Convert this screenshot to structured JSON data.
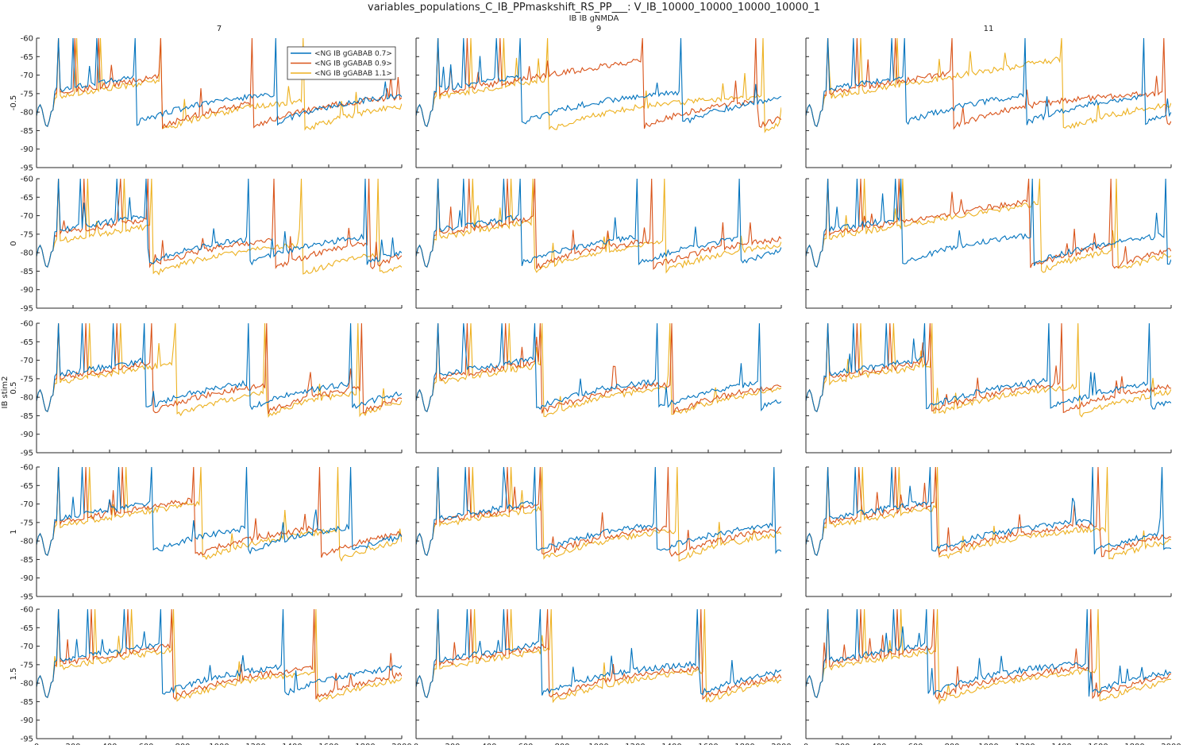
{
  "figure": {
    "title": "variables_populations_C_IB_PPmaskshift_RS_PP___: V_IB_10000_10000_10000_10000_1",
    "column_param_label": "IB IB gNMDA",
    "row_param_label": "IB stim2"
  },
  "chart_data": {
    "type": "line",
    "layout": {
      "rows": 5,
      "cols": 3
    },
    "column_labels": [
      "7",
      "9",
      "11"
    ],
    "row_labels": [
      "-0.5",
      "0",
      "0.5",
      "1",
      "1.5"
    ],
    "xlim": [
      0,
      2000
    ],
    "ylim": [
      -95,
      -60
    ],
    "x_ticks": [
      0,
      200,
      400,
      600,
      800,
      1000,
      1200,
      1400,
      1600,
      1800,
      2000
    ],
    "y_ticks": [
      -60,
      -65,
      -70,
      -75,
      -80,
      -85,
      -90,
      -95
    ],
    "grid": false,
    "legend": {
      "placement": "inside-top of first panel",
      "entries": [
        "<NG IB gGABAB 0.7>",
        "<NG IB gGABAB 0.9>",
        "<NG IB gGABAB 1.1>"
      ]
    },
    "series_colors": [
      "#0072BD",
      "#D95319",
      "#EDB120"
    ],
    "note_x_step": 10,
    "panels": [
      {
        "row": 0,
        "col": 0,
        "spikes": [
          [
            120,
            200,
            330
          ],
          [
            120,
            210,
            340
          ],
          [
            120,
            220,
            350
          ]
        ],
        "resets": [
          [
            540,
            1310
          ],
          [
            680,
            1180
          ],
          [
            680,
            1460
          ]
        ],
        "offset": [
          0,
          -1,
          -2
        ]
      },
      {
        "row": 0,
        "col": 1,
        "spikes": [
          [
            120,
            260,
            440
          ],
          [
            120,
            280,
            460
          ],
          [
            120,
            300,
            480
          ]
        ],
        "resets": [
          [
            570,
            1450
          ],
          [
            1240,
            1860
          ],
          [
            720,
            1900
          ]
        ],
        "offset": [
          0,
          -1,
          -2
        ]
      },
      {
        "row": 0,
        "col": 2,
        "spikes": [
          [
            120,
            260,
            470
          ],
          [
            120,
            280,
            490
          ],
          [
            120,
            300,
            500
          ]
        ],
        "resets": [
          [
            540,
            1200,
            1850
          ],
          [
            800,
            1960
          ],
          [
            1400
          ]
        ],
        "offset": [
          0,
          -1,
          -2
        ]
      },
      {
        "row": 1,
        "col": 0,
        "spikes": [
          [
            120,
            240,
            440
          ],
          [
            120,
            260,
            460
          ],
          [
            120,
            280,
            480
          ]
        ],
        "resets": [
          [
            600,
            1160,
            1800
          ],
          [
            610,
            1300,
            1820
          ],
          [
            630,
            1450,
            1870
          ]
        ],
        "offset": [
          0,
          -1,
          -3
        ]
      },
      {
        "row": 1,
        "col": 1,
        "spikes": [
          [
            120,
            260,
            480
          ],
          [
            120,
            290,
            500
          ],
          [
            120,
            310,
            520
          ]
        ],
        "resets": [
          [
            570,
            1210,
            1770
          ],
          [
            650,
            1290
          ],
          [
            640,
            1360
          ]
        ],
        "offset": [
          0,
          -1,
          -2
        ]
      },
      {
        "row": 1,
        "col": 2,
        "spikes": [
          [
            120,
            280,
            490
          ],
          [
            120,
            300,
            510
          ],
          [
            120,
            320,
            530
          ]
        ],
        "resets": [
          [
            520,
            1240,
            1970
          ],
          [
            1220,
            1670
          ],
          [
            1280,
            1700
          ]
        ],
        "offset": [
          0,
          -1,
          -2
        ]
      },
      {
        "row": 2,
        "col": 0,
        "spikes": [
          [
            120,
            250,
            420
          ],
          [
            120,
            270,
            440
          ],
          [
            120,
            290,
            460
          ]
        ],
        "resets": [
          [
            590,
            1160,
            1720
          ],
          [
            630,
            1260,
            1780
          ],
          [
            760,
            1250,
            1760
          ]
        ],
        "offset": [
          0,
          -1,
          -2
        ]
      },
      {
        "row": 2,
        "col": 1,
        "spikes": [
          [
            120,
            260,
            470
          ],
          [
            120,
            280,
            490
          ],
          [
            120,
            300,
            510
          ]
        ],
        "resets": [
          [
            650,
            1320,
            1880
          ],
          [
            680,
            1400
          ],
          [
            690,
            1390
          ]
        ],
        "offset": [
          0,
          -1,
          -2
        ]
      },
      {
        "row": 2,
        "col": 2,
        "spikes": [
          [
            120,
            260,
            440
          ],
          [
            120,
            280,
            460
          ],
          [
            120,
            300,
            480
          ]
        ],
        "resets": [
          [
            650,
            1330,
            1880
          ],
          [
            680,
            1400
          ],
          [
            690,
            1490
          ]
        ],
        "offset": [
          0,
          -1,
          -2
        ]
      },
      {
        "row": 3,
        "col": 0,
        "spikes": [
          [
            120,
            250,
            450
          ],
          [
            120,
            270,
            470
          ],
          [
            120,
            290,
            490
          ]
        ],
        "resets": [
          [
            630,
            1150,
            1720
          ],
          [
            860,
            1550
          ],
          [
            900,
            1650
          ]
        ],
        "offset": [
          0,
          -1,
          -2
        ]
      },
      {
        "row": 3,
        "col": 1,
        "spikes": [
          [
            120,
            270,
            480
          ],
          [
            120,
            290,
            500
          ],
          [
            120,
            310,
            520
          ]
        ],
        "resets": [
          [
            650,
            1310,
            1960
          ],
          [
            680,
            1380
          ],
          [
            690,
            1430
          ]
        ],
        "offset": [
          0,
          -1,
          -2
        ]
      },
      {
        "row": 3,
        "col": 2,
        "spikes": [
          [
            120,
            270,
            470
          ],
          [
            120,
            290,
            490
          ],
          [
            120,
            310,
            510
          ]
        ],
        "resets": [
          [
            680,
            1570,
            1950
          ],
          [
            710,
            1600
          ],
          [
            720,
            1650
          ]
        ],
        "offset": [
          0,
          -1,
          -2
        ]
      },
      {
        "row": 4,
        "col": 0,
        "spikes": [
          [
            120,
            280,
            480
          ],
          [
            120,
            300,
            500
          ],
          [
            120,
            320,
            520
          ]
        ],
        "resets": [
          [
            680,
            1350
          ],
          [
            740,
            1520
          ],
          [
            750,
            1530
          ]
        ],
        "offset": [
          0,
          -1,
          -2
        ]
      },
      {
        "row": 4,
        "col": 1,
        "spikes": [
          [
            120,
            280,
            480
          ],
          [
            120,
            300,
            500
          ],
          [
            120,
            320,
            520
          ]
        ],
        "resets": [
          [
            680,
            1540
          ],
          [
            720,
            1560
          ],
          [
            740,
            1580
          ]
        ],
        "offset": [
          0,
          -1,
          -2
        ]
      },
      {
        "row": 4,
        "col": 2,
        "spikes": [
          [
            120,
            280,
            480
          ],
          [
            120,
            300,
            500
          ],
          [
            120,
            320,
            520
          ]
        ],
        "resets": [
          [
            660,
            1540
          ],
          [
            700,
            1560
          ],
          [
            720,
            1600
          ]
        ],
        "offset": [
          0,
          -1,
          -2
        ]
      }
    ]
  }
}
